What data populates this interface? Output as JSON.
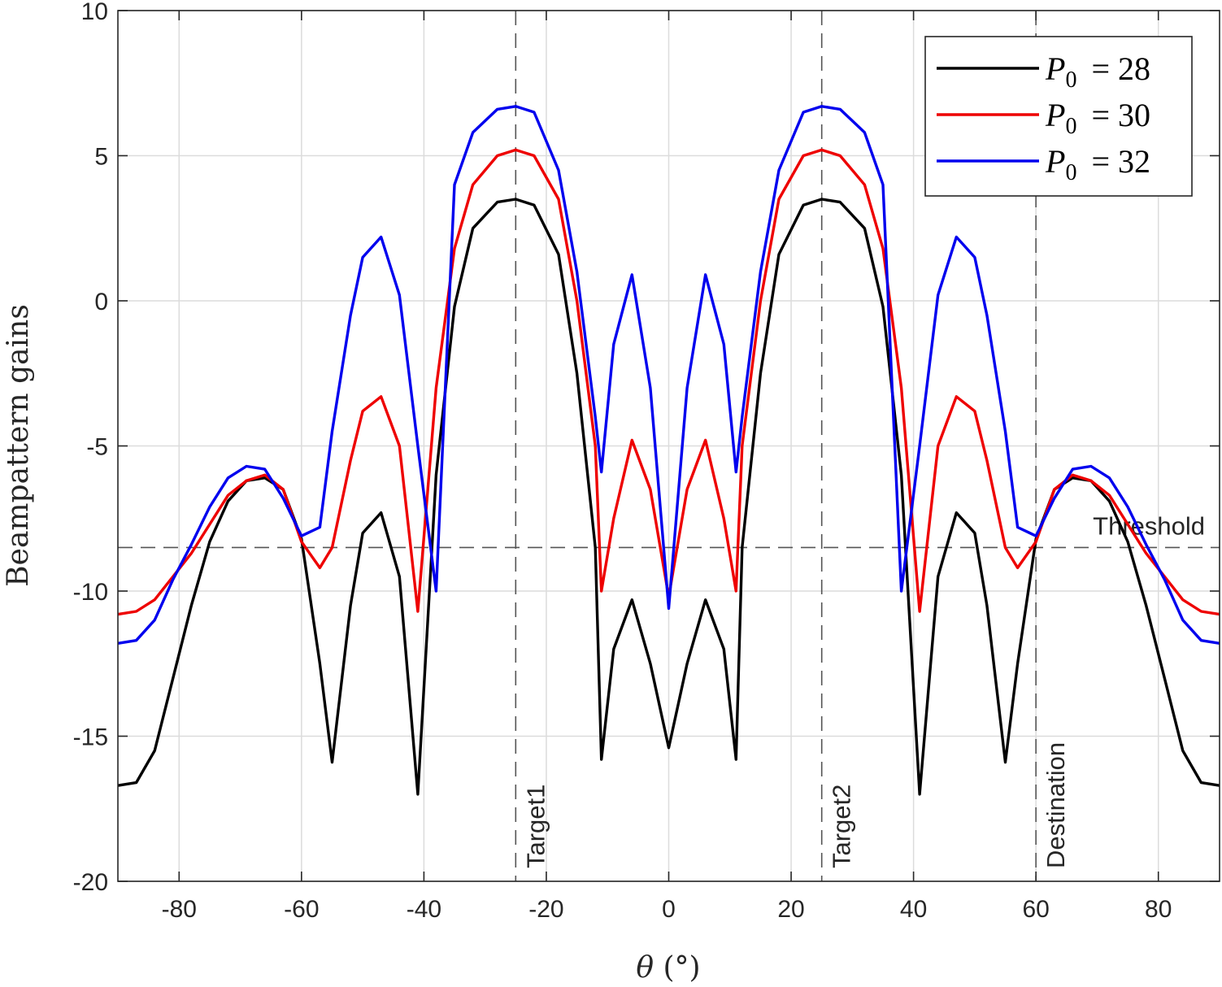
{
  "chart_data": {
    "type": "line",
    "xlabel": "θ (°)",
    "ylabel": "Beampattern gains",
    "xlim": [
      -90,
      90
    ],
    "ylim": [
      -20,
      10
    ],
    "grid": true,
    "legend_position": "top-right",
    "xticks": [
      -80,
      -60,
      -40,
      -20,
      0,
      20,
      40,
      60,
      80
    ],
    "yticks": [
      -20,
      -15,
      -10,
      -5,
      0,
      5,
      10
    ],
    "x": [
      -90,
      -87,
      -84,
      -81,
      -78,
      -75,
      -72,
      -69,
      -66,
      -63,
      -60,
      -57,
      -55,
      -52,
      -50,
      -47,
      -44,
      -41,
      -38,
      -35,
      -32,
      -28,
      -25,
      -22,
      -18,
      -15,
      -12,
      -11,
      -9,
      -6,
      -3,
      0,
      3,
      6,
      9,
      11,
      12,
      15,
      18,
      22,
      25,
      28,
      32,
      35,
      38,
      41,
      44,
      47,
      50,
      52,
      55,
      57,
      60,
      63,
      66,
      69,
      72,
      75,
      78,
      81,
      84,
      87,
      90
    ],
    "series": [
      {
        "name": "P_0 = 28",
        "legend_label": "P",
        "legend_sub": "0",
        "legend_value": "= 28",
        "color": "#000000",
        "values": [
          -16.7,
          -16.6,
          -15.5,
          -13.0,
          -10.5,
          -8.3,
          -6.9,
          -6.2,
          -6.1,
          -6.5,
          -8.2,
          -12.5,
          -15.9,
          -10.5,
          -8.0,
          -7.3,
          -9.5,
          -17.0,
          -6.0,
          -0.2,
          2.5,
          3.4,
          3.5,
          3.3,
          1.6,
          -2.5,
          -8.5,
          -15.8,
          -12.0,
          -10.3,
          -12.5,
          -15.4,
          -12.5,
          -10.3,
          -12.0,
          -15.8,
          -8.5,
          -2.5,
          1.6,
          3.3,
          3.5,
          3.4,
          2.5,
          -0.2,
          -6.0,
          -17.0,
          -9.5,
          -7.3,
          -8.0,
          -10.5,
          -15.9,
          -12.5,
          -8.2,
          -6.5,
          -6.1,
          -6.2,
          -6.9,
          -8.3,
          -10.5,
          -13.0,
          -15.5,
          -16.6,
          -16.7
        ]
      },
      {
        "name": "P_0 = 30",
        "legend_label": "P",
        "legend_sub": "0",
        "legend_value": "= 30",
        "color": "#ee0000",
        "values": [
          -10.8,
          -10.7,
          -10.3,
          -9.5,
          -8.7,
          -7.7,
          -6.7,
          -6.2,
          -6.0,
          -6.5,
          -8.3,
          -9.2,
          -8.5,
          -5.5,
          -3.8,
          -3.3,
          -5.0,
          -10.7,
          -3.0,
          1.8,
          4.0,
          5.0,
          5.2,
          5.0,
          3.5,
          0.0,
          -5.0,
          -10.0,
          -7.5,
          -4.8,
          -6.5,
          -10.2,
          -6.5,
          -4.8,
          -7.5,
          -10.0,
          -5.0,
          0.0,
          3.5,
          5.0,
          5.2,
          5.0,
          4.0,
          1.8,
          -3.0,
          -10.7,
          -5.0,
          -3.3,
          -3.8,
          -5.5,
          -8.5,
          -9.2,
          -8.3,
          -6.5,
          -6.0,
          -6.2,
          -6.7,
          -7.7,
          -8.7,
          -9.5,
          -10.3,
          -10.7,
          -10.8
        ]
      },
      {
        "name": "P_0 = 32",
        "legend_label": "P",
        "legend_sub": "0",
        "legend_value": "= 32",
        "color": "#0000ee",
        "values": [
          -11.8,
          -11.7,
          -11.0,
          -9.6,
          -8.4,
          -7.1,
          -6.1,
          -5.7,
          -5.8,
          -6.8,
          -8.1,
          -7.8,
          -4.5,
          -0.5,
          1.5,
          2.2,
          0.2,
          -5.0,
          -10.0,
          4.0,
          5.8,
          6.6,
          6.7,
          6.5,
          4.5,
          1.0,
          -4.0,
          -5.9,
          -1.5,
          0.9,
          -3.0,
          -10.6,
          -3.0,
          0.9,
          -1.5,
          -5.9,
          -4.0,
          1.0,
          4.5,
          6.5,
          6.7,
          6.6,
          5.8,
          4.0,
          -10.0,
          -5.0,
          0.2,
          2.2,
          1.5,
          -0.5,
          -4.5,
          -7.8,
          -8.1,
          -6.8,
          -5.8,
          -5.7,
          -6.1,
          -7.1,
          -8.4,
          -9.6,
          -11.0,
          -11.7,
          -11.8
        ]
      }
    ],
    "reference_lines": [
      {
        "orientation": "horizontal",
        "value": -8.5,
        "label": "Threshold"
      },
      {
        "orientation": "vertical",
        "value": -25,
        "label": "Target1"
      },
      {
        "orientation": "vertical",
        "value": 25,
        "label": "Target2"
      },
      {
        "orientation": "vertical",
        "value": 60,
        "label": "Destination"
      }
    ]
  }
}
